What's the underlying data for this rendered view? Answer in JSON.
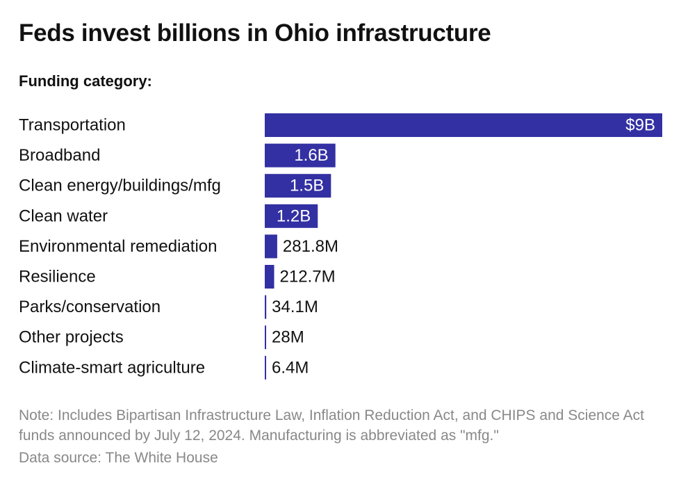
{
  "title": "Feds invest billions in Ohio infrastructure",
  "subtitle": "Funding category:",
  "note": "Note: Includes Bipartisan Infrastructure Law, Inflation Reduction Act, and CHIPS and Science Act funds announced by July 12, 2024. Manufacturing is abbreviated as \"mfg.\"",
  "source": "Data source: The White House",
  "colors": {
    "bar": "#3330a3",
    "label_inside": "#ffffff",
    "label_outside": "#111111"
  },
  "chart_data": {
    "type": "bar",
    "orientation": "horizontal",
    "categories": [
      "Transportation",
      "Broadband",
      "Clean energy/buildings/mfg",
      "Clean water",
      "Environmental remediation",
      "Resilience",
      "Parks/conservation",
      "Other projects",
      "Climate-smart agriculture"
    ],
    "values": [
      9000000000,
      1600000000,
      1500000000,
      1200000000,
      281800000,
      212700000,
      34100000,
      28000000,
      6400000
    ],
    "value_labels": [
      "$9B",
      "1.6B",
      "1.5B",
      "1.2B",
      "281.8M",
      "212.7M",
      "34.1M",
      "28M",
      "6.4M"
    ],
    "xlim": [
      0,
      9000000000
    ],
    "grid": false,
    "legend": "none"
  }
}
